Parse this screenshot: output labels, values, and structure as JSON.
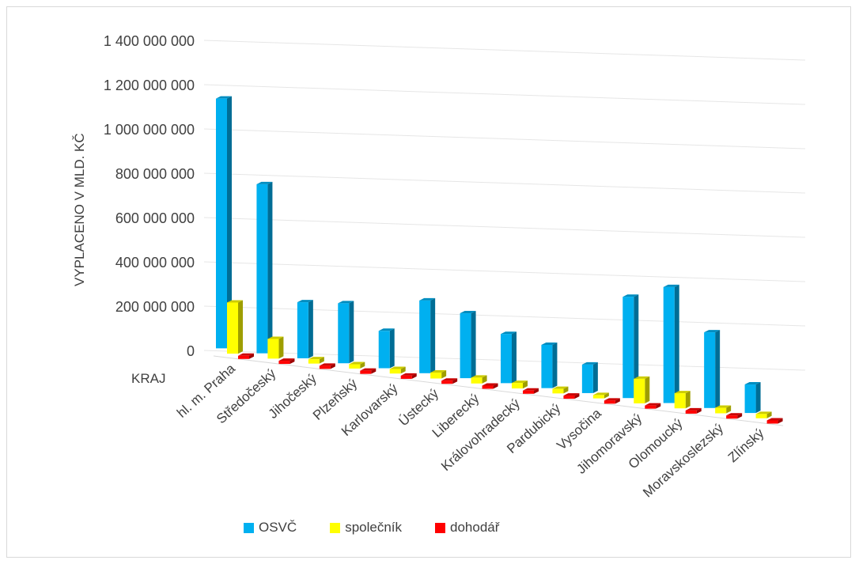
{
  "chart_data": {
    "type": "bar",
    "title": "",
    "ylabel": "VYPLACENO V MLD. KČ",
    "xlabel": "KRAJ",
    "ylim": [
      0,
      1400000000
    ],
    "y_ticks": [
      "0",
      "200 000 000",
      "400 000 000",
      "600 000 000",
      "800 000 000",
      "1 000 000 000",
      "1 200 000 000",
      "1 400 000 000"
    ],
    "grid": true,
    "legend_position": "bottom-left",
    "categories": [
      "hl. m. Praha",
      "Středočeský",
      "Jihočeský",
      "Plzeňský",
      "Karlovarský",
      "Ústecký",
      "Liberecký",
      "Královohradecký",
      "Pardubický",
      "Vysočina",
      "Jihomoravský",
      "Olomoucký",
      "Moravskoslezský",
      "Zlínský"
    ],
    "series": [
      {
        "name": "OSVČ",
        "color": "#00b0f0",
        "values": [
          1270000000,
          860000000,
          285000000,
          305000000,
          190000000,
          370000000,
          330000000,
          250000000,
          220000000,
          145000000,
          515000000,
          590000000,
          385000000,
          145000000
        ]
      },
      {
        "name": "společník",
        "color": "#ffff00",
        "values": [
          260000000,
          100000000,
          22000000,
          22000000,
          23000000,
          30000000,
          30000000,
          28000000,
          23000000,
          17000000,
          125000000,
          77000000,
          28000000,
          22000000
        ]
      },
      {
        "name": "dohodář",
        "color": "#ff0000",
        "values": [
          15000000,
          12000000,
          8000000,
          8000000,
          8000000,
          12000000,
          10000000,
          10000000,
          10000000,
          8000000,
          13000000,
          12000000,
          12000000,
          10000000
        ]
      }
    ]
  }
}
